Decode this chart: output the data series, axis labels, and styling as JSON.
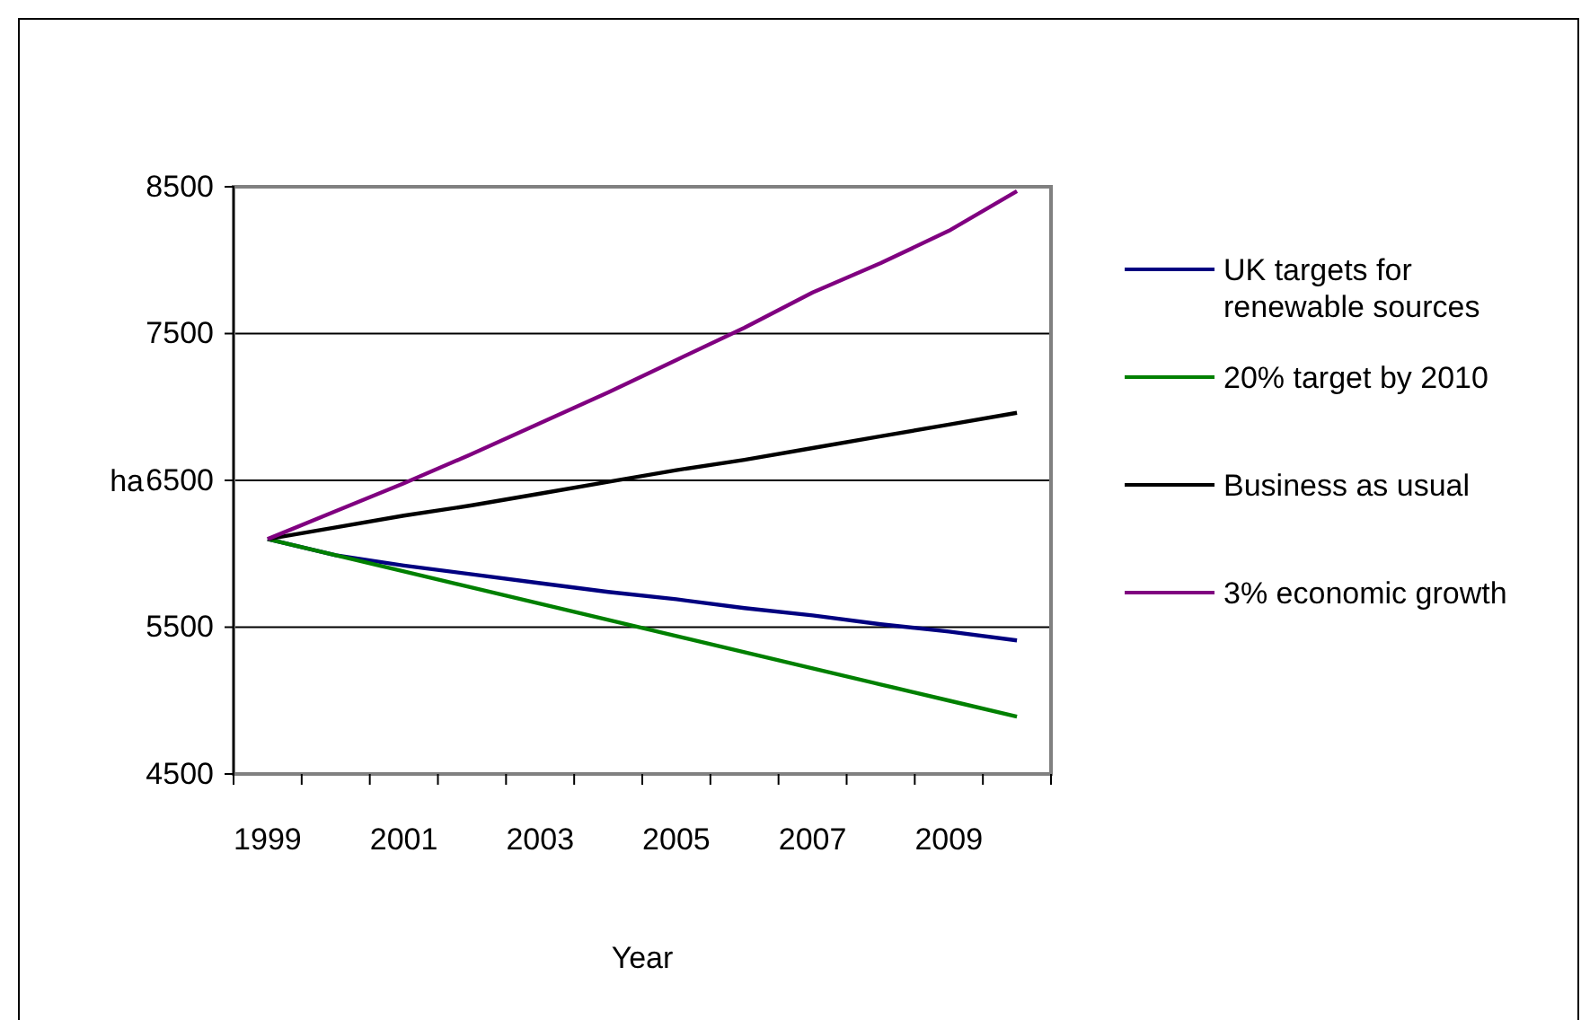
{
  "chart_data": {
    "type": "line",
    "xlabel": "Year",
    "ylabel": "ha",
    "categories": [
      "1999",
      null,
      "2001",
      null,
      "2003",
      null,
      "2005",
      null,
      "2007",
      null,
      "2009",
      null
    ],
    "series": [
      {
        "name": "UK targets for renewable sources",
        "color": "#000080",
        "values": [
          6100,
          5990,
          5920,
          5860,
          5800,
          5740,
          5690,
          5630,
          5580,
          5520,
          5470,
          5410
        ]
      },
      {
        "name": "20% target by 2010",
        "color": "#008000",
        "values": [
          6100,
          5990,
          5880,
          5770,
          5660,
          5550,
          5440,
          5330,
          5220,
          5110,
          5000,
          4890
        ]
      },
      {
        "name": "Business as usual",
        "color": "#000000",
        "values": [
          6100,
          6180,
          6260,
          6330,
          6410,
          6490,
          6570,
          6640,
          6720,
          6800,
          6880,
          6960
        ]
      },
      {
        "name": "3% economic growth",
        "color": "#800080",
        "values": [
          6100,
          6290,
          6480,
          6680,
          6890,
          7100,
          7320,
          7540,
          7780,
          7980,
          8200,
          8470
        ]
      }
    ],
    "ylim": [
      4500,
      8500
    ],
    "yticks": [
      4500,
      5500,
      6500,
      7500,
      8500
    ],
    "grid": "y",
    "legend": "right",
    "marker": "none",
    "line_style": "solid"
  }
}
